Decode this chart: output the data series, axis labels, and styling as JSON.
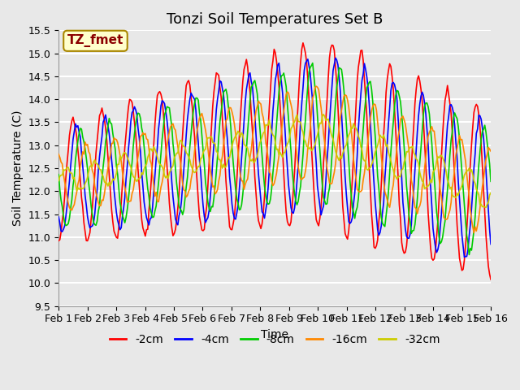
{
  "title": "Tonzi Soil Temperatures Set B",
  "xlabel": "Time",
  "ylabel": "Soil Temperature (C)",
  "ylim": [
    9.5,
    15.5
  ],
  "yticks": [
    9.5,
    10.0,
    10.5,
    11.0,
    11.5,
    12.0,
    12.5,
    13.0,
    13.5,
    14.0,
    14.5,
    15.0,
    15.5
  ],
  "xlim_days": 15,
  "n_points": 360,
  "series": [
    {
      "label": "-2cm",
      "color": "#ff0000",
      "depth_phase": 0.0,
      "amplitude_scale": 1.0
    },
    {
      "label": "-4cm",
      "color": "#0000ff",
      "depth_phase": 0.25,
      "amplitude_scale": 0.85
    },
    {
      "label": "-8cm",
      "color": "#00cc00",
      "depth_phase": 0.55,
      "amplitude_scale": 0.75
    },
    {
      "label": "-16cm",
      "color": "#ff8800",
      "depth_phase": 0.9,
      "amplitude_scale": 0.5
    },
    {
      "label": "-32cm",
      "color": "#cccc00",
      "depth_phase": 1.5,
      "amplitude_scale": 0.2
    }
  ],
  "annotation_text": "TZ_fmet",
  "annotation_color": "#8b0000",
  "annotation_bg": "#ffffcc",
  "annotation_border": "#aa8800",
  "background_color": "#e8e8e8",
  "plot_bg_color": "#e8e8e8",
  "grid_color": "#ffffff",
  "title_fontsize": 13,
  "label_fontsize": 10,
  "tick_fontsize": 9,
  "legend_fontsize": 10
}
